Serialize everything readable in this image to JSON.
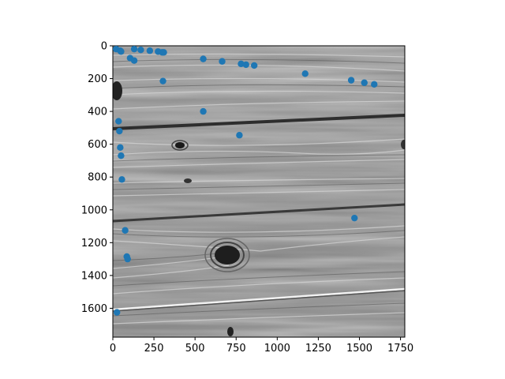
{
  "chart_data": {
    "type": "scatter",
    "title": "",
    "xlabel": "",
    "ylabel": "",
    "background": "grayscale photograph of weathered wood planks with knots",
    "xlim": [
      0,
      1776
    ],
    "ylim": [
      1776,
      0
    ],
    "y_inverted": true,
    "grid": false,
    "xticks": [
      0,
      250,
      500,
      750,
      1000,
      1250,
      1500,
      1750
    ],
    "yticks": [
      0,
      200,
      400,
      600,
      800,
      1000,
      1200,
      1400,
      1600
    ],
    "marker_color": "#1f77b4",
    "series": [
      {
        "x": [
          20,
          45,
          50,
          130,
          170,
          225,
          275,
          300,
          310,
          105,
          130,
          305,
          550,
          665,
          780,
          810,
          860,
          1170,
          1450,
          1530,
          1590,
          550,
          770,
          35,
          40,
          45,
          50,
          55,
          75,
          85,
          90,
          25,
          1470
        ],
        "y": [
          20,
          30,
          35,
          20,
          25,
          30,
          35,
          40,
          40,
          75,
          90,
          215,
          80,
          95,
          110,
          115,
          120,
          170,
          210,
          225,
          235,
          400,
          545,
          460,
          520,
          620,
          670,
          815,
          1125,
          1285,
          1300,
          1625,
          1050
        ]
      }
    ]
  }
}
